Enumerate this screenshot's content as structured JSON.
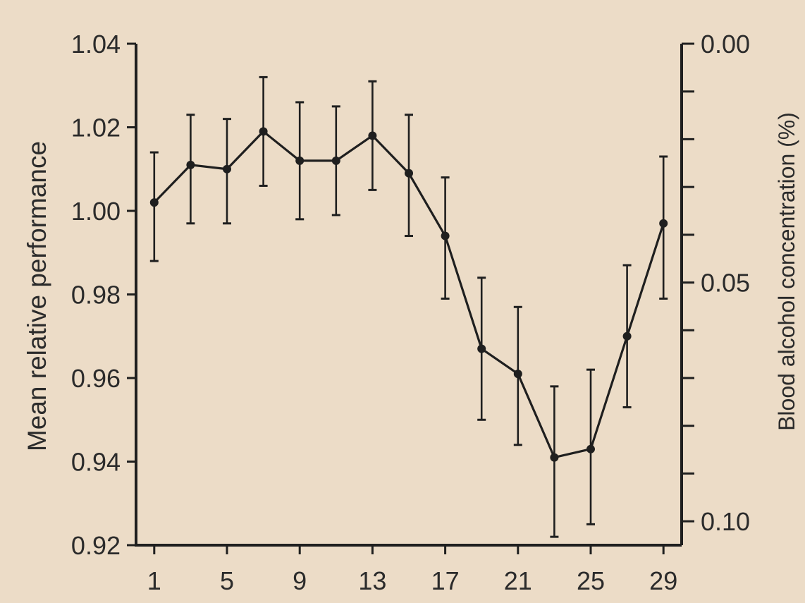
{
  "colors": {
    "background": "#ecdcc7",
    "ink": "#1f1f1f",
    "tick_text": "#2b2b2b"
  },
  "chart_data": {
    "type": "line",
    "title": "",
    "xlabel": "",
    "ylabel": "Mean relative performance",
    "y2label": "Blood alcohol concentration (%)",
    "grid": false,
    "legend": "none",
    "xlim": [
      0,
      30
    ],
    "ylim": [
      0.92,
      1.04
    ],
    "y2lim": [
      0.0,
      0.105
    ],
    "y2_inverted": true,
    "x_ticks": [
      1,
      5,
      9,
      13,
      17,
      21,
      25,
      29
    ],
    "x_tick_labels": [
      "1",
      "5",
      "9",
      "13",
      "17",
      "21",
      "25",
      "29"
    ],
    "y_ticks": [
      0.92,
      0.94,
      0.96,
      0.98,
      1.0,
      1.02,
      1.04
    ],
    "y_tick_labels": [
      "0.92",
      "0.94",
      "0.96",
      "0.98",
      "1.00",
      "1.02",
      "1.04"
    ],
    "y2_ticks": [
      0.0,
      0.01,
      0.02,
      0.03,
      0.04,
      0.05,
      0.06,
      0.07,
      0.08,
      0.09,
      0.1
    ],
    "y2_tick_labels": [
      "0.00",
      "",
      "",
      "",
      "",
      "0.05",
      "",
      "",
      "",
      "",
      "0.10"
    ],
    "series": [
      {
        "x": [
          1,
          3,
          5,
          7,
          9,
          11,
          13,
          15,
          17,
          19,
          21,
          23,
          25,
          27,
          29
        ],
        "values": [
          1.002,
          1.011,
          1.01,
          1.019,
          1.012,
          1.012,
          1.018,
          1.009,
          0.994,
          0.967,
          0.961,
          0.941,
          0.943,
          0.97,
          0.997
        ],
        "err_low": [
          0.988,
          0.997,
          0.997,
          1.006,
          0.998,
          0.999,
          1.005,
          0.994,
          0.979,
          0.95,
          0.944,
          0.922,
          0.925,
          0.953,
          0.979
        ],
        "err_high": [
          1.014,
          1.023,
          1.022,
          1.032,
          1.026,
          1.025,
          1.031,
          1.023,
          1.008,
          0.984,
          0.977,
          0.958,
          0.962,
          0.987,
          1.013
        ]
      }
    ]
  }
}
